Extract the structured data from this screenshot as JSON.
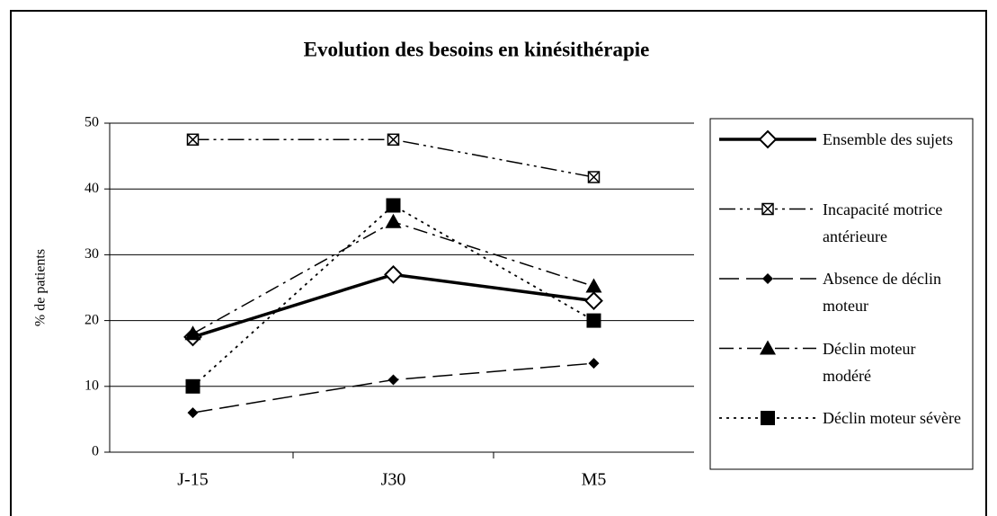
{
  "chart_data": {
    "type": "line",
    "title": "Evolution des besoins en kinésithérapie",
    "y_label": "% de patients",
    "categories": [
      "J-15",
      "J30",
      "M5"
    ],
    "series": [
      {
        "name": "Ensemble des sujets",
        "color": "#000000",
        "values": [
          17.5,
          27,
          23
        ]
      },
      {
        "name": "Incapacité motrice antérieure",
        "color": "#000000",
        "values": [
          47.5,
          47.5,
          41.8
        ]
      },
      {
        "name": "Absence de déclin moteur",
        "color": "#000000",
        "values": [
          6,
          11,
          13.5
        ]
      },
      {
        "name": "Déclin moteur modéré",
        "color": "#000000",
        "values": [
          18,
          35,
          25.2
        ]
      },
      {
        "name": "Déclin moteur sévère",
        "color": "#000000",
        "values": [
          10,
          37.5,
          20
        ]
      }
    ],
    "ylim": [
      0,
      50
    ],
    "yticks": [
      0,
      10,
      20,
      30,
      40,
      50
    ],
    "grid": true,
    "legend": "right"
  }
}
